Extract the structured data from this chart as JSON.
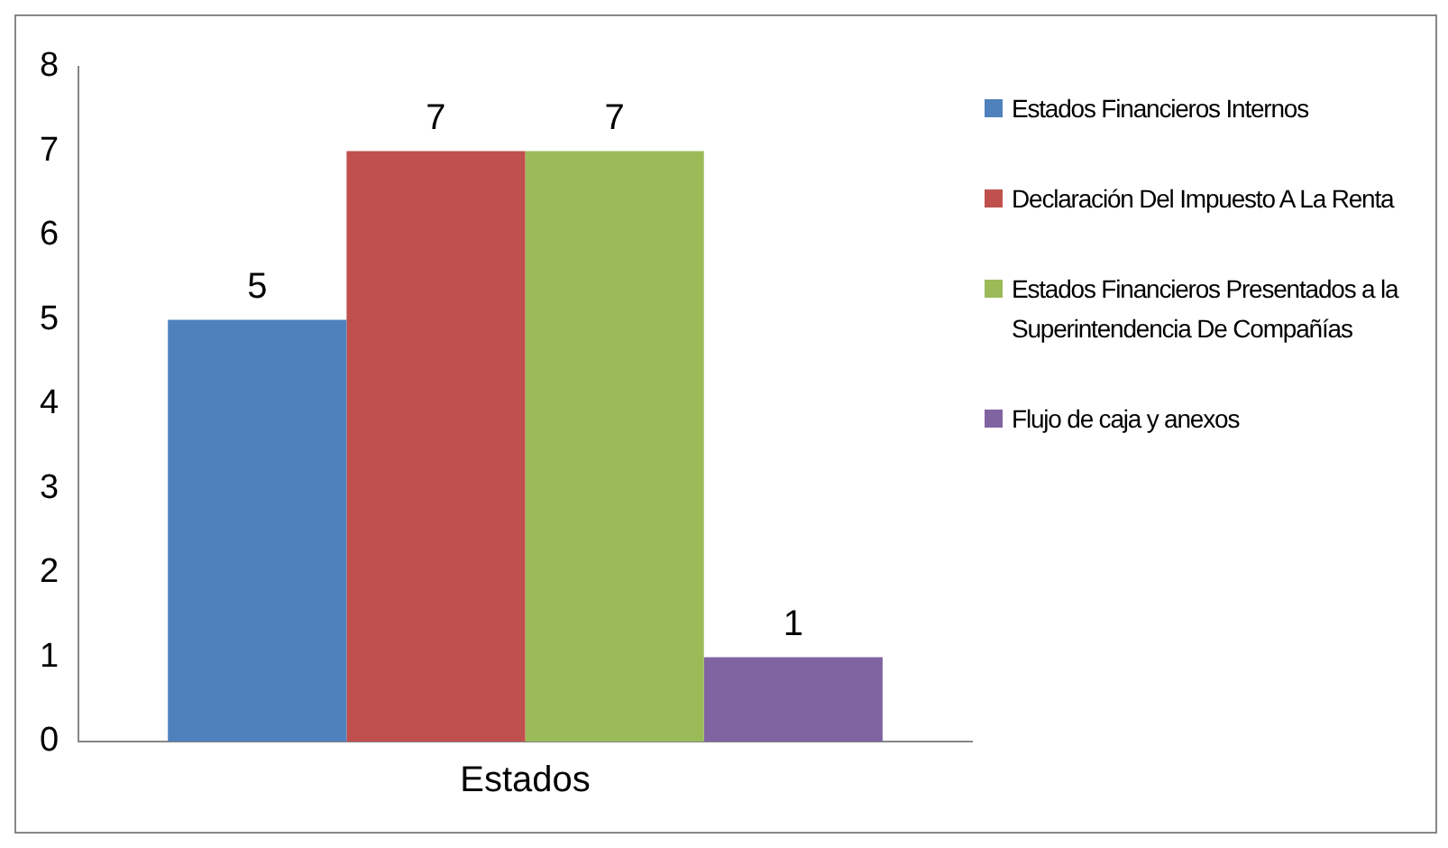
{
  "chart_data": {
    "type": "bar",
    "categories": [
      "Estados"
    ],
    "series": [
      {
        "name": "Estados Financieros Internos",
        "color": "#4f81bd",
        "values": [
          5
        ]
      },
      {
        "name": "Declaración Del Impuesto A La Renta",
        "color": "#c0504d",
        "values": [
          7
        ]
      },
      {
        "name": "Estados Financieros Presentados a la Superintendencia De Compañías",
        "color": "#9bbb59",
        "values": [
          7
        ]
      },
      {
        "name": "Flujo de caja y anexos",
        "color": "#8064a2",
        "values": [
          1
        ]
      }
    ],
    "ylim": [
      0,
      8
    ],
    "yticks": [
      0,
      1,
      2,
      3,
      4,
      5,
      6,
      7,
      8
    ],
    "grid": false,
    "legend": "right",
    "data_labels": true
  }
}
